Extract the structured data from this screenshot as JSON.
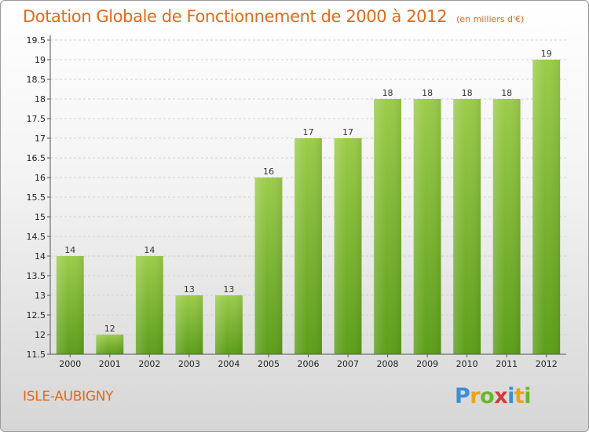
{
  "chart_data": {
    "type": "bar",
    "title": "Dotation Globale de Fonctionnement de 2000 à 2012",
    "unit_label": "(en milliers d'€)",
    "categories": [
      "2000",
      "2001",
      "2002",
      "2003",
      "2004",
      "2005",
      "2006",
      "2007",
      "2008",
      "2009",
      "2010",
      "2011",
      "2012"
    ],
    "values": [
      14,
      12,
      14,
      13,
      13,
      16,
      17,
      17,
      18,
      18,
      18,
      18,
      19
    ],
    "data_labels": [
      "14",
      "12",
      "14",
      "13",
      "13",
      "16",
      "17",
      "17",
      "18",
      "18",
      "18",
      "18",
      "19"
    ],
    "ylim": [
      11.5,
      19.5
    ],
    "yticks": [
      11.5,
      12,
      12.5,
      13,
      13.5,
      14,
      14.5,
      15,
      15.5,
      16,
      16.5,
      17,
      17.5,
      18,
      18.5,
      19,
      19.5
    ],
    "grid": true,
    "bar_color_top": "#9ccc4a",
    "bar_color_bottom": "#5c9e1a"
  },
  "footer": {
    "commune": "ISLE-AUBIGNY",
    "logo": [
      "P",
      "r",
      "o",
      "x",
      "i",
      "t",
      "i"
    ]
  }
}
